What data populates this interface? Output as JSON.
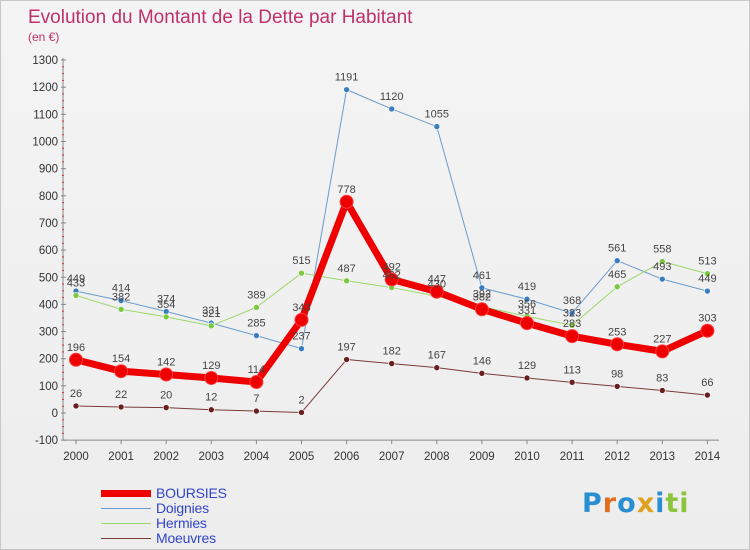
{
  "title": "Evolution du Montant de la Dette par Habitant",
  "subtitle": "(en €)",
  "logo": {
    "letters": [
      "P",
      "r",
      "o",
      "x",
      "i",
      "t",
      "i"
    ],
    "colors": [
      "#2a8fd0",
      "#e07020",
      "#2a8fd0",
      "#e0a020",
      "#2a8fd0",
      "#8cc43c",
      "#8cc43c"
    ]
  },
  "chart_data": {
    "type": "line",
    "categories": [
      "2000",
      "2001",
      "2002",
      "2003",
      "2004",
      "2005",
      "2006",
      "2007",
      "2008",
      "2009",
      "2010",
      "2011",
      "2012",
      "2013",
      "2014"
    ],
    "ylim": [
      -100,
      1300
    ],
    "yticks": [
      "-100",
      "0",
      "100",
      "200",
      "300",
      "400",
      "500",
      "600",
      "700",
      "800",
      "900",
      "1000",
      "1100",
      "1200",
      "1300"
    ],
    "grid": false,
    "legend": "bottom-left",
    "series": [
      {
        "name": "BOURSIES",
        "color": "#ee0000",
        "width": 7,
        "values": [
          196,
          154,
          142,
          129,
          114,
          343,
          778,
          492,
          447,
          382,
          331,
          283,
          253,
          227,
          303
        ],
        "labels": [
          "196",
          "154",
          "142",
          "129",
          "114",
          "343",
          "778",
          "492",
          "447",
          "382",
          "331",
          "283",
          "253",
          "227",
          "303"
        ]
      },
      {
        "name": "Doignies",
        "color": "#6a9ccc",
        "width": 1,
        "values": [
          449,
          414,
          374,
          331,
          285,
          237,
          1191,
          1120,
          1055,
          461,
          419,
          368,
          561,
          493,
          449
        ],
        "labels": [
          "449",
          "414",
          "374",
          "331",
          "285",
          "237",
          "1191",
          "1120",
          "1055",
          "461",
          "419",
          "368",
          "561",
          "493",
          "449"
        ]
      },
      {
        "name": "Hermies",
        "color": "#9ad86a",
        "width": 1,
        "values": [
          433,
          382,
          354,
          321,
          389,
          515,
          487,
          462,
          430,
          392,
          356,
          323,
          465,
          558,
          513
        ],
        "labels": [
          "433",
          "382",
          "354",
          "321",
          "389",
          "515",
          "487",
          "462",
          "430",
          "392",
          "356",
          "323",
          "465",
          "558",
          "513"
        ]
      },
      {
        "name": "Moeuvres",
        "color": "#7a3a3a",
        "width": 1,
        "values": [
          26,
          22,
          20,
          12,
          7,
          2,
          197,
          182,
          167,
          146,
          129,
          113,
          98,
          83,
          66
        ],
        "labels": [
          "26",
          "22",
          "20",
          "12",
          "7",
          "2",
          "197",
          "182",
          "167",
          "146",
          "129",
          "113",
          "98",
          "83",
          "66"
        ]
      }
    ]
  }
}
